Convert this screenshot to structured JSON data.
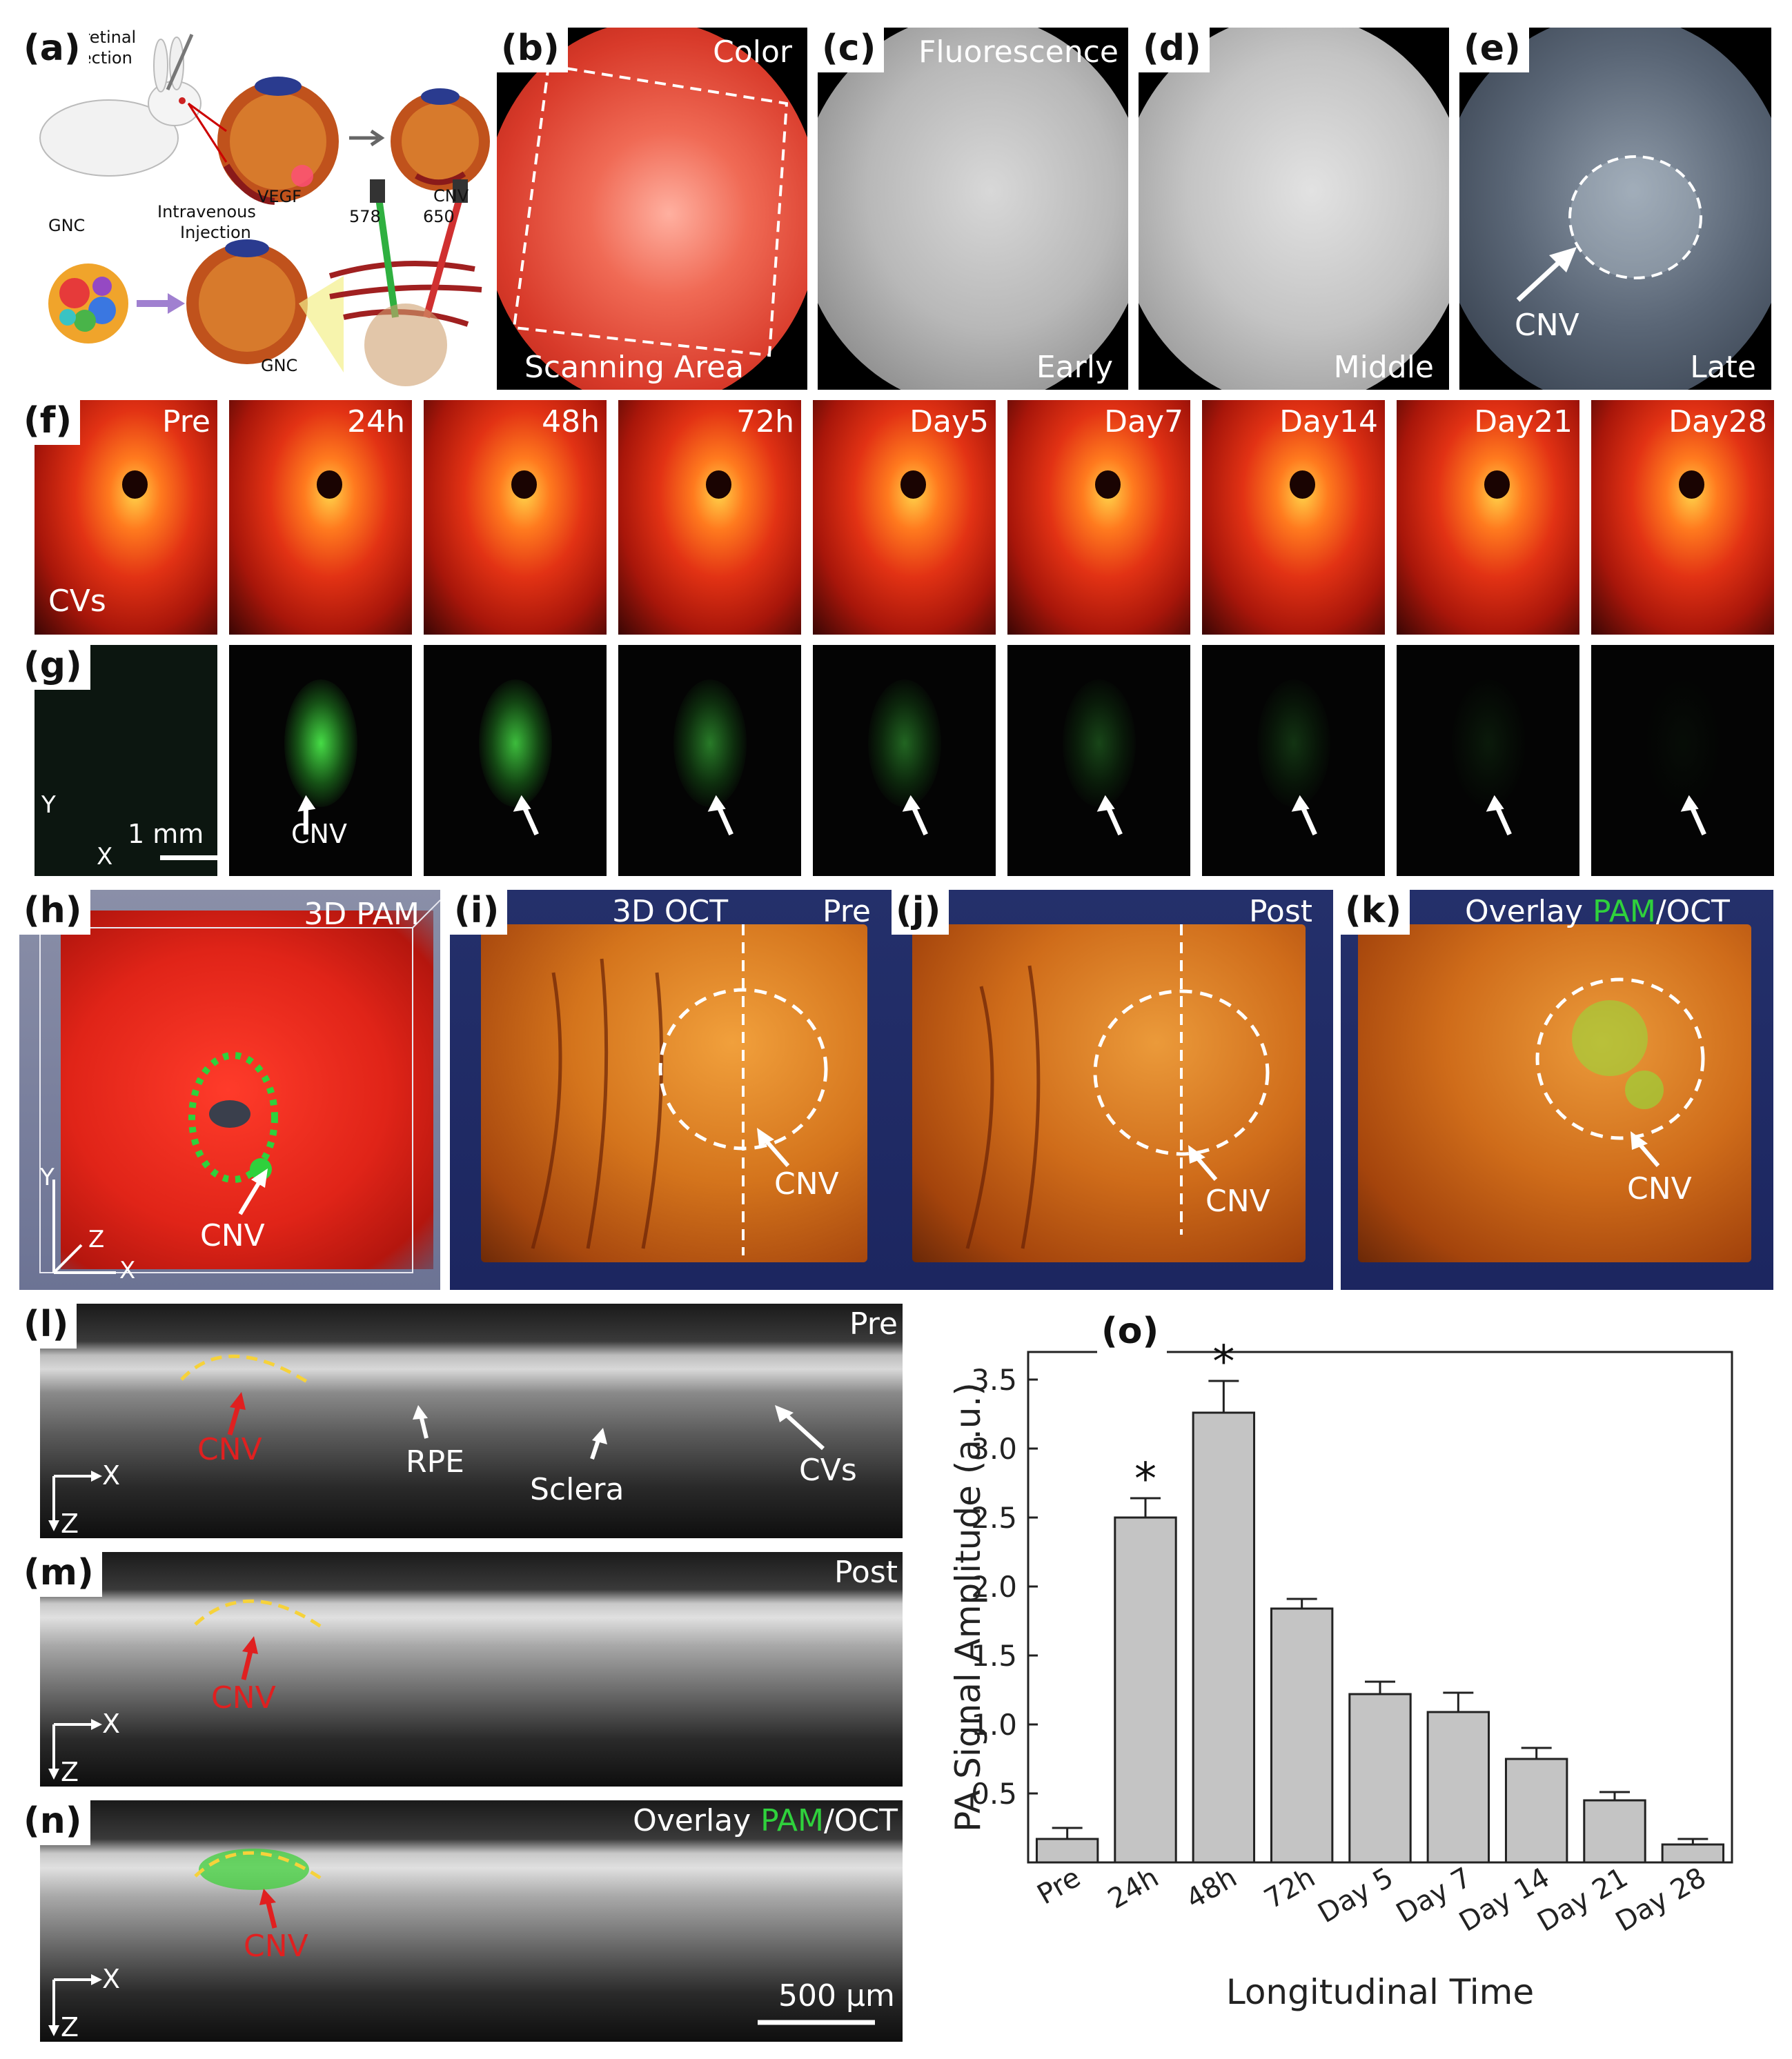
{
  "panel_labels": {
    "a": "(a)",
    "b": "(b)",
    "c": "(c)",
    "d": "(d)",
    "e": "(e)",
    "f": "(f)",
    "g": "(g)",
    "h": "(h)",
    "i": "(i)",
    "j": "(j)",
    "k": "(k)",
    "l": "(l)",
    "m": "(m)",
    "n": "(n)",
    "o": "(o)"
  },
  "panel_a": {
    "injection_top": "ubretinal",
    "injection_top2": "njection",
    "vegf": "VEGF",
    "cnv": "CNV",
    "gnc": "GNC",
    "intravenous": "Intravenous",
    "injection": "Injection",
    "gnc_bottom": "GNC",
    "laser_578": "578",
    "laser_650": "650"
  },
  "panel_b": {
    "top": "Color",
    "bottom": "Scanning Area"
  },
  "panel_c": {
    "top": "Fluorescence",
    "bottom": "Early"
  },
  "panel_d": {
    "bottom": "Middle"
  },
  "panel_e": {
    "arrow_label": "CNV",
    "bottom": "Late"
  },
  "row_f": {
    "timepoints": [
      "Pre",
      "24h",
      "48h",
      "72h",
      "Day5",
      "Day7",
      "Day14",
      "Day21",
      "Day28"
    ],
    "arrow_label": "CVs"
  },
  "row_g": {
    "arrow_label": "CNV",
    "axis_y": "Y",
    "axis_x": "X",
    "scale": "1 mm"
  },
  "panel_h": {
    "title": "3D PAM",
    "arrow_label": "CNV",
    "axis_y": "Y",
    "axis_z": "Z",
    "axis_x": "X"
  },
  "panel_i": {
    "title": "3D OCT",
    "tag": "Pre",
    "arrow_label": "CNV"
  },
  "panel_j": {
    "tag": "Post",
    "arrow_label": "CNV"
  },
  "panel_k": {
    "title_a": "Overlay ",
    "title_b": "PAM",
    "title_c": "/OCT",
    "arrow_label": "CNV"
  },
  "panel_l": {
    "tag": "Pre",
    "cnv": "CNV",
    "rpe": "RPE",
    "sclera": "Sclera",
    "cvs": "CVs",
    "axis_x": "X",
    "axis_z": "Z"
  },
  "panel_m": {
    "tag": "Post",
    "cnv": "CNV",
    "axis_x": "X",
    "axis_z": "Z"
  },
  "panel_n": {
    "title_a": "Overlay ",
    "title_b": "PAM",
    "title_c": "/OCT",
    "cnv": "CNV",
    "axis_x": "X",
    "axis_z": "Z",
    "scale": "500 µm"
  },
  "chart_data": {
    "type": "bar",
    "categories": [
      "Pre",
      "24h",
      "48h",
      "72h",
      "Day 5",
      "Day 7",
      "Day 14",
      "Day 21",
      "Day 28"
    ],
    "values": [
      0.17,
      2.5,
      3.26,
      1.84,
      1.22,
      1.09,
      0.75,
      0.45,
      0.13
    ],
    "errors": [
      0.08,
      0.14,
      0.23,
      0.07,
      0.09,
      0.14,
      0.08,
      0.06,
      0.04
    ],
    "significant": [
      "",
      "*",
      "*",
      "",
      "",
      "",
      "",
      "",
      ""
    ],
    "xlabel": "Longitudinal Time",
    "ylabel": "PA Signal Amplitude (a.u.)",
    "ylim": [
      0,
      3.7
    ],
    "yticks": [
      "0.5",
      "1.0",
      "1.5",
      "2.0",
      "2.5",
      "3.0",
      "3.5"
    ],
    "ytick_values": [
      0.5,
      1.0,
      1.5,
      2.0,
      2.5,
      3.0,
      3.5
    ],
    "bar_color": "#c4c4c4",
    "grid": false
  }
}
